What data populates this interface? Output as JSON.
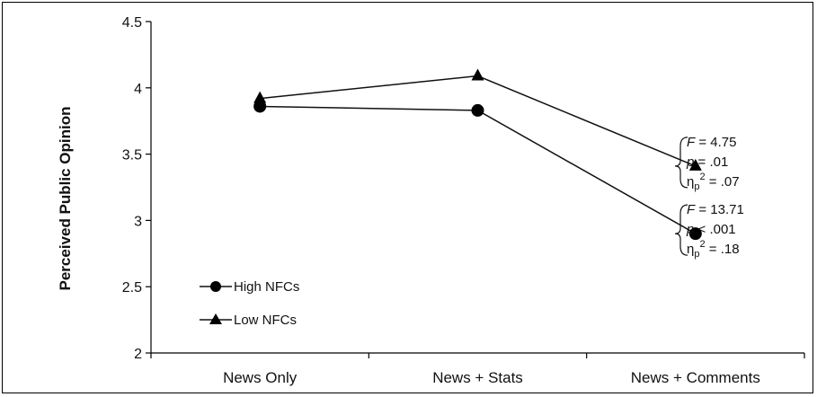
{
  "chart_data": {
    "type": "line",
    "ylabel": "Perceived Public Opinion",
    "xlabel": "",
    "ylim": [
      2,
      4.5
    ],
    "yticks": [
      "2",
      "2.5",
      "3",
      "3.5",
      "4",
      "4.5"
    ],
    "categories": [
      "News Only",
      "News + Stats",
      "News + Comments"
    ],
    "series": [
      {
        "name": "High NFCs",
        "marker": "circle",
        "values": [
          3.86,
          3.83,
          2.9
        ]
      },
      {
        "name": "Low NFCs",
        "marker": "triangle",
        "values": [
          3.92,
          4.09,
          3.41
        ]
      }
    ],
    "legend_position": "bottom-left",
    "annotations": [
      {
        "series": "Low NFCs",
        "F": "4.75",
        "p": ".01",
        "eta": ".07"
      },
      {
        "series": "High NFCs",
        "F": "13.71",
        "p": "< .001",
        "eta": ".18"
      }
    ],
    "colors": {
      "line": "#111111",
      "marker": "#000000"
    }
  }
}
